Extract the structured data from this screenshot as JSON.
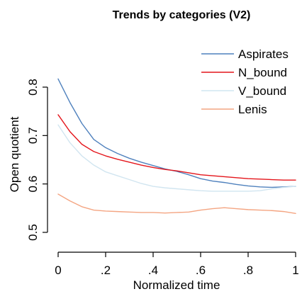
{
  "chart_data": {
    "type": "line",
    "title": "Trends by categories (V2)",
    "xlabel": "Normalized time",
    "ylabel": "Open quotient",
    "xlim": [
      0,
      1
    ],
    "ylim": [
      0.5,
      0.82
    ],
    "grid": false,
    "legend_position": "top-right",
    "x_ticks": [
      0,
      0.2,
      0.4,
      0.6,
      0.8,
      1
    ],
    "x_tick_labels": [
      "0",
      ".2",
      ".4",
      ".6",
      ".8",
      "1"
    ],
    "y_ticks": [
      0.5,
      0.6,
      0.7,
      0.8
    ],
    "y_tick_labels": [
      "0.5",
      "0.6",
      "0.7",
      "0.8"
    ],
    "x": [
      0,
      0.05,
      0.1,
      0.15,
      0.2,
      0.25,
      0.3,
      0.35,
      0.4,
      0.45,
      0.5,
      0.55,
      0.6,
      0.65,
      0.7,
      0.75,
      0.8,
      0.85,
      0.9,
      0.95,
      1.0
    ],
    "series": [
      {
        "name": "Aspirates",
        "color": "#4f81bd",
        "values": [
          0.817,
          0.768,
          0.725,
          0.692,
          0.675,
          0.663,
          0.653,
          0.645,
          0.638,
          0.631,
          0.626,
          0.619,
          0.611,
          0.606,
          0.603,
          0.599,
          0.596,
          0.594,
          0.593,
          0.594,
          0.595
        ]
      },
      {
        "name": "N_bound",
        "color": "#e4151b",
        "values": [
          0.743,
          0.708,
          0.682,
          0.667,
          0.658,
          0.651,
          0.645,
          0.639,
          0.634,
          0.63,
          0.627,
          0.623,
          0.619,
          0.617,
          0.615,
          0.613,
          0.611,
          0.61,
          0.609,
          0.608,
          0.608
        ]
      },
      {
        "name": "V_bound",
        "color": "#d1e5f0",
        "values": [
          0.722,
          0.685,
          0.658,
          0.639,
          0.625,
          0.617,
          0.609,
          0.601,
          0.595,
          0.592,
          0.59,
          0.588,
          0.586,
          0.585,
          0.585,
          0.585,
          0.585,
          0.586,
          0.59,
          0.593,
          0.595
        ]
      },
      {
        "name": "Lenis",
        "color": "#f4a582",
        "values": [
          0.579,
          0.565,
          0.553,
          0.546,
          0.544,
          0.543,
          0.542,
          0.541,
          0.541,
          0.54,
          0.541,
          0.542,
          0.546,
          0.549,
          0.551,
          0.549,
          0.547,
          0.546,
          0.545,
          0.543,
          0.539
        ]
      }
    ]
  }
}
